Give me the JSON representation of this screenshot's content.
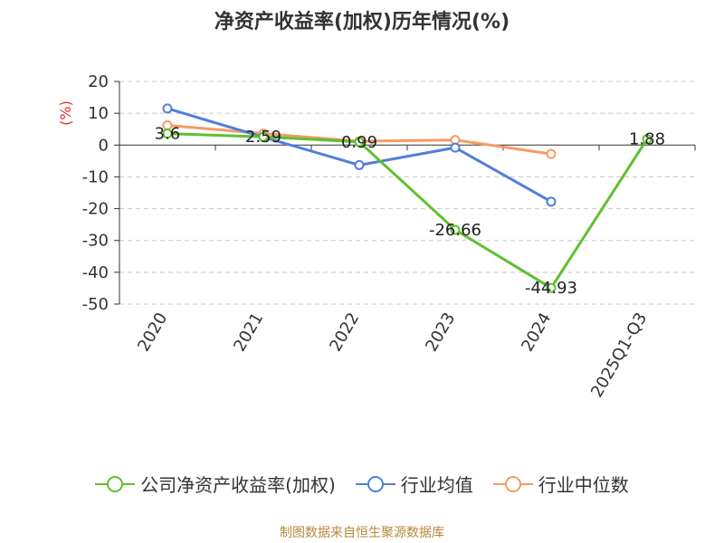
{
  "chart_data": {
    "type": "line",
    "title": "净资产收益率(加权)历年情况(%)",
    "ylabel": "(%)",
    "categories": [
      "2020",
      "2021",
      "2022",
      "2023",
      "2024",
      "2025Q1-Q3"
    ],
    "ylim": [
      -50,
      20
    ],
    "yticks": [
      20,
      10,
      0,
      -10,
      -20,
      -30,
      -40,
      -50
    ],
    "grid": true,
    "legend_position": "bottom",
    "series": [
      {
        "name": "公司净资产收益率(加权)",
        "color": "#5ec130",
        "values": [
          3.6,
          2.59,
          0.99,
          -26.66,
          -44.93,
          1.88
        ],
        "labels": [
          "3.6",
          "2.59",
          "0.99",
          "-26.66",
          "-44.93",
          "1.88"
        ]
      },
      {
        "name": "行业均值",
        "color": "#4f7fdc",
        "values": [
          11.5,
          2.5,
          -6.3,
          -0.8,
          -17.8,
          null
        ]
      },
      {
        "name": "行业中位数",
        "color": "#f59a66",
        "values": [
          6.2,
          3.6,
          1.2,
          1.6,
          -2.8,
          null
        ]
      }
    ]
  },
  "source_text": "制图数据来自恒生聚源数据库"
}
